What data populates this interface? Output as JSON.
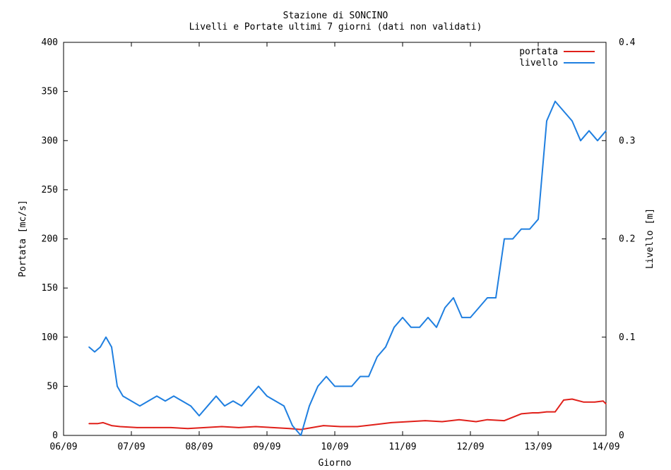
{
  "chart_data": {
    "type": "line",
    "title": "Stazione di SONCINO",
    "subtitle": "Livelli e Portate ultimi 7 giorni (dati non validati)",
    "xlabel": "Giorno",
    "ylabel_left": "Portata [mc/s]",
    "ylabel_right": "Livello [m]",
    "x_ticks": [
      "06/09",
      "07/09",
      "08/09",
      "09/09",
      "10/09",
      "11/09",
      "12/09",
      "13/09",
      "14/09"
    ],
    "xlim": [
      "06/09 00:00",
      "14/09 00:00"
    ],
    "y_left_ticks": [
      "0",
      "50",
      "100",
      "150",
      "200",
      "250",
      "300",
      "350",
      "400"
    ],
    "ylim_left": [
      0,
      400
    ],
    "y_right_ticks": [
      "0",
      "0.1",
      "0.2",
      "0.3",
      "0.4"
    ],
    "ylim_right": [
      0,
      0.4
    ],
    "legend_position": "top-right",
    "grid": false,
    "series": [
      {
        "name": "portata",
        "axis": "left",
        "color": "#e0201a",
        "x": [
          "06/09 09:00",
          "06/09 12:00",
          "06/09 14:00",
          "06/09 17:00",
          "06/09 20:00",
          "07/09 02:00",
          "07/09 08:00",
          "07/09 14:00",
          "07/09 20:00",
          "08/09 02:00",
          "08/09 08:00",
          "08/09 14:00",
          "08/09 20:00",
          "09/09 02:00",
          "09/09 08:00",
          "09/09 12:00",
          "09/09 16:00",
          "09/09 20:00",
          "10/09 02:00",
          "10/09 08:00",
          "10/09 14:00",
          "10/09 20:00",
          "11/09 02:00",
          "11/09 08:00",
          "11/09 14:00",
          "11/09 20:00",
          "12/09 02:00",
          "12/09 06:00",
          "12/09 12:00",
          "12/09 18:00",
          "12/09 22:00",
          "13/09 00:00",
          "13/09 03:00",
          "13/09 06:00",
          "13/09 09:00",
          "13/09 12:00",
          "13/09 16:00",
          "13/09 20:00",
          "13/09 23:00",
          "14/09 00:00"
        ],
        "values": [
          12,
          12,
          13,
          10,
          9,
          8,
          8,
          8,
          7,
          8,
          9,
          8,
          9,
          8,
          7,
          6,
          8,
          10,
          9,
          9,
          11,
          13,
          14,
          15,
          14,
          16,
          14,
          16,
          15,
          22,
          23,
          23,
          24,
          24,
          36,
          37,
          34,
          34,
          35,
          32
        ]
      },
      {
        "name": "livello",
        "axis": "right",
        "color": "#1f7fe0",
        "x": [
          "06/09 09:00",
          "06/09 11:00",
          "06/09 13:00",
          "06/09 15:00",
          "06/09 17:00",
          "06/09 19:00",
          "06/09 21:00",
          "07/09 00:00",
          "07/09 03:00",
          "07/09 06:00",
          "07/09 09:00",
          "07/09 12:00",
          "07/09 15:00",
          "07/09 18:00",
          "07/09 21:00",
          "08/09 00:00",
          "08/09 03:00",
          "08/09 06:00",
          "08/09 09:00",
          "08/09 12:00",
          "08/09 15:00",
          "08/09 18:00",
          "08/09 21:00",
          "09/09 00:00",
          "09/09 03:00",
          "09/09 06:00",
          "09/09 09:00",
          "09/09 12:00",
          "09/09 15:00",
          "09/09 18:00",
          "09/09 21:00",
          "10/09 00:00",
          "10/09 03:00",
          "10/09 06:00",
          "10/09 09:00",
          "10/09 12:00",
          "10/09 15:00",
          "10/09 18:00",
          "10/09 21:00",
          "11/09 00:00",
          "11/09 03:00",
          "11/09 06:00",
          "11/09 09:00",
          "11/09 12:00",
          "11/09 15:00",
          "11/09 18:00",
          "11/09 21:00",
          "12/09 00:00",
          "12/09 03:00",
          "12/09 06:00",
          "12/09 09:00",
          "12/09 12:00",
          "12/09 15:00",
          "12/09 18:00",
          "12/09 21:00",
          "13/09 00:00",
          "13/09 03:00",
          "13/09 06:00",
          "13/09 09:00",
          "13/09 12:00",
          "13/09 15:00",
          "13/09 18:00",
          "13/09 21:00",
          "14/09 00:00"
        ],
        "values": [
          0.09,
          0.085,
          0.09,
          0.1,
          0.09,
          0.05,
          0.04,
          0.035,
          0.03,
          0.035,
          0.04,
          0.035,
          0.04,
          0.035,
          0.03,
          0.02,
          0.03,
          0.04,
          0.03,
          0.035,
          0.03,
          0.04,
          0.05,
          0.04,
          0.035,
          0.03,
          0.01,
          0.0,
          0.03,
          0.05,
          0.06,
          0.05,
          0.05,
          0.05,
          0.06,
          0.06,
          0.08,
          0.09,
          0.11,
          0.12,
          0.11,
          0.11,
          0.12,
          0.11,
          0.13,
          0.14,
          0.12,
          0.12,
          0.13,
          0.14,
          0.14,
          0.2,
          0.2,
          0.21,
          0.21,
          0.22,
          0.32,
          0.34,
          0.33,
          0.32,
          0.3,
          0.31,
          0.3,
          0.31
        ]
      }
    ]
  }
}
